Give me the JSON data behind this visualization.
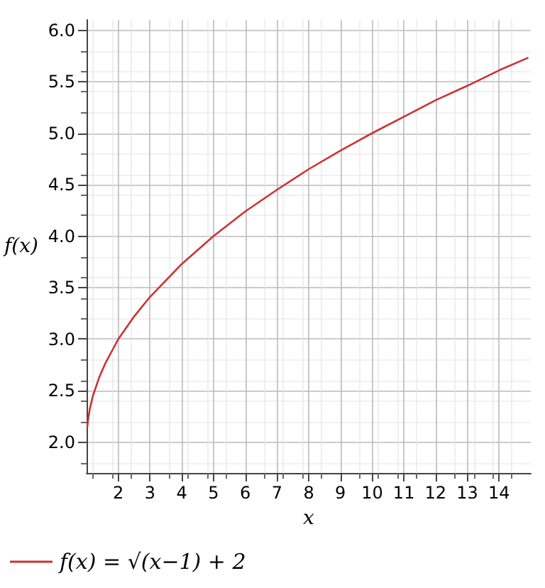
{
  "chart_data": {
    "type": "line",
    "xlabel": "x",
    "ylabel": "f(x)",
    "x": [
      1.02,
      1.05,
      1.1,
      1.2,
      1.4,
      1.6,
      2,
      2.5,
      3,
      4,
      5,
      6,
      7,
      8,
      9,
      10,
      11,
      12,
      13,
      14,
      14.9
    ],
    "series": [
      {
        "name": "f(x) = √(x−1) + 2",
        "color": "#cc3333",
        "values": [
          2.14,
          2.22,
          2.32,
          2.45,
          2.63,
          2.77,
          3.0,
          3.22,
          3.41,
          3.73,
          4.0,
          4.24,
          4.45,
          4.65,
          4.83,
          5.0,
          5.16,
          5.32,
          5.46,
          5.61,
          5.73
        ]
      }
    ],
    "xlim": [
      1,
      15
    ],
    "xticks": [
      2,
      3,
      4,
      5,
      6,
      7,
      8,
      9,
      10,
      11,
      12,
      13,
      14
    ],
    "ylim": [
      1.7,
      6.1
    ],
    "yticks": [
      {
        "value": 2,
        "label": "2.0"
      },
      {
        "value": 2.5,
        "label": "2.5"
      },
      {
        "value": 3,
        "label": "3.0"
      },
      {
        "value": 3.5,
        "label": "3.5"
      },
      {
        "value": 4,
        "label": "4.0"
      },
      {
        "value": 4.5,
        "label": "4.5"
      },
      {
        "value": 5,
        "label": "5.0"
      },
      {
        "value": 5.5,
        "label": "5.5"
      },
      {
        "value": 6,
        "label": "6.0"
      }
    ],
    "grid": true,
    "legend": "bottom left",
    "marker": "none",
    "line_style": "solid"
  }
}
